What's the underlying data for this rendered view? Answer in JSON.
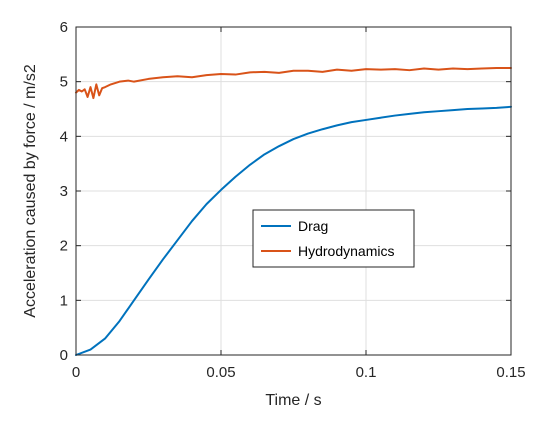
{
  "chart_data": {
    "type": "line",
    "xlabel": "Time / s",
    "ylabel": "Acceleration caused by force / m/s2",
    "xlim": [
      0,
      0.15
    ],
    "ylim": [
      0,
      6
    ],
    "grid": true,
    "legend_position": "center",
    "x_ticks": [
      0,
      0.05,
      0.1,
      0.15
    ],
    "x_tick_labels": [
      "0",
      "0.05",
      "0.1",
      "0.15"
    ],
    "y_ticks": [
      0,
      1,
      2,
      3,
      4,
      5,
      6
    ],
    "y_tick_labels": [
      "0",
      "1",
      "2",
      "3",
      "4",
      "5",
      "6"
    ],
    "series": [
      {
        "name": "Drag",
        "color": "#0072BD",
        "x": [
          0,
          0.005,
          0.01,
          0.015,
          0.02,
          0.025,
          0.03,
          0.035,
          0.04,
          0.045,
          0.05,
          0.055,
          0.06,
          0.065,
          0.07,
          0.075,
          0.08,
          0.085,
          0.09,
          0.095,
          0.1,
          0.105,
          0.11,
          0.115,
          0.12,
          0.125,
          0.13,
          0.135,
          0.14,
          0.145,
          0.15
        ],
        "y": [
          0,
          0.1,
          0.3,
          0.62,
          1.0,
          1.38,
          1.75,
          2.1,
          2.45,
          2.76,
          3.02,
          3.26,
          3.48,
          3.67,
          3.82,
          3.95,
          4.05,
          4.13,
          4.2,
          4.26,
          4.3,
          4.34,
          4.38,
          4.41,
          4.44,
          4.46,
          4.48,
          4.5,
          4.51,
          4.52,
          4.54
        ]
      },
      {
        "name": "Hydrodynamics",
        "color": "#D95319",
        "x": [
          0,
          0.001,
          0.002,
          0.003,
          0.004,
          0.005,
          0.006,
          0.007,
          0.008,
          0.009,
          0.01,
          0.012,
          0.015,
          0.018,
          0.02,
          0.025,
          0.03,
          0.035,
          0.04,
          0.045,
          0.05,
          0.055,
          0.06,
          0.065,
          0.07,
          0.075,
          0.08,
          0.085,
          0.09,
          0.095,
          0.1,
          0.105,
          0.11,
          0.115,
          0.12,
          0.125,
          0.13,
          0.135,
          0.14,
          0.145,
          0.15
        ],
        "y": [
          4.8,
          4.85,
          4.82,
          4.86,
          4.72,
          4.9,
          4.7,
          4.95,
          4.75,
          4.88,
          4.9,
          4.95,
          5.0,
          5.02,
          5.0,
          5.05,
          5.08,
          5.1,
          5.08,
          5.12,
          5.14,
          5.13,
          5.17,
          5.18,
          5.16,
          5.2,
          5.2,
          5.18,
          5.22,
          5.2,
          5.23,
          5.22,
          5.23,
          5.21,
          5.24,
          5.22,
          5.24,
          5.23,
          5.24,
          5.25,
          5.25
        ]
      }
    ]
  }
}
